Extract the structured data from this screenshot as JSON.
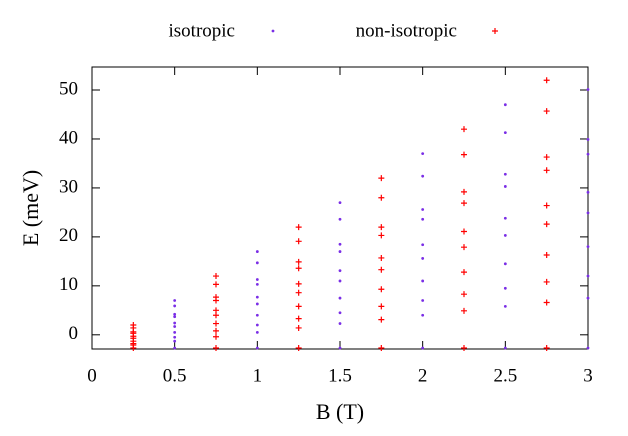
{
  "chart_data": {
    "type": "scatter",
    "xlabel": "B (T)",
    "ylabel": "E (meV)",
    "xlim": [
      0,
      3
    ],
    "ylim": [
      -2.9,
      54.7
    ],
    "xticks": [
      0,
      0.5,
      1,
      1.5,
      2,
      2.5,
      3
    ],
    "yticks": [
      0,
      10,
      20,
      30,
      40,
      50
    ],
    "legend": "top",
    "series": [
      {
        "name": "isotropic",
        "color": "#7a2ee6",
        "marker": "dot",
        "x": [
          0.5,
          1,
          1.5,
          2,
          2.5,
          3,
          0.5,
          1,
          1.5,
          2,
          2.5,
          3,
          0.5,
          1,
          1.5,
          2,
          2.5,
          3,
          0.5,
          1,
          1.5,
          2,
          2.5,
          3,
          0.5,
          1,
          1.5,
          2,
          2.5,
          3,
          0.5,
          1,
          1.5,
          2,
          2.5,
          3,
          0.5,
          1,
          1.5,
          2,
          2.5,
          3,
          0.5,
          1,
          1.5,
          2,
          2.5,
          3,
          0.5,
          1,
          1.5,
          2,
          2.5,
          0.5,
          1,
          1.5,
          2,
          2.5,
          3
        ],
        "y": [
          -1.3,
          0.5,
          2.3,
          4,
          5.8,
          7.5,
          -0.5,
          2,
          4.5,
          7,
          9.5,
          12,
          0.5,
          4,
          7.5,
          11,
          14.5,
          18,
          1.7,
          6.3,
          11,
          15.6,
          20.3,
          24.9,
          2.4,
          7.7,
          13.1,
          18.4,
          23.8,
          29.1,
          3.7,
          10.3,
          17,
          23.6,
          30.3,
          36.9,
          4.2,
          11.3,
          18.5,
          25.6,
          32.8,
          39.9,
          5.9,
          14.7,
          23.6,
          32.4,
          41.3,
          50.1,
          7,
          17,
          27,
          37,
          47,
          -2.7,
          -2.7,
          -2.7,
          -2.7,
          -2.7,
          -2.7
        ]
      },
      {
        "name": "non-isotropic",
        "color": "#ff0000",
        "marker": "plus",
        "x": [
          0.25,
          0.75,
          1.25,
          1.75,
          2.25,
          2.75,
          0.25,
          0.75,
          1.25,
          1.75,
          2.25,
          2.75,
          0.25,
          0.75,
          1.25,
          1.75,
          2.25,
          2.75,
          0.25,
          0.75,
          1.25,
          1.75,
          2.25,
          2.75,
          0.25,
          0.75,
          1.25,
          1.75,
          2.25,
          2.75,
          0.25,
          0.75,
          1.25,
          1.75,
          2.25,
          2.75,
          0.25,
          0.75,
          1.25,
          1.75,
          2.25,
          2.75,
          0.25,
          0.75,
          1.25,
          1.75,
          2.25,
          2.75,
          0.25,
          0.75,
          1.25,
          1.75,
          2.25,
          2.75,
          0.25,
          0.75,
          1.25,
          1.75,
          2.25,
          2.75
        ],
        "y": [
          -2.1,
          -0.4,
          1.4,
          3.1,
          4.9,
          6.6,
          -1.8,
          0.8,
          3.3,
          5.8,
          8.3,
          10.8,
          -1.3,
          2.3,
          5.8,
          9.3,
          12.8,
          16.3,
          -0.7,
          4,
          8.6,
          13.3,
          17.9,
          22.6,
          -0.3,
          5,
          10.4,
          15.7,
          21.1,
          26.4,
          0.3,
          7,
          13.6,
          20.3,
          26.9,
          33.6,
          0.6,
          7.7,
          14.9,
          22,
          29.2,
          36.3,
          1.4,
          10.3,
          19.1,
          28,
          36.8,
          45.7,
          2,
          12,
          22,
          32,
          42,
          52,
          -2.7,
          -2.7,
          -2.7,
          -2.7,
          -2.7,
          -2.7
        ]
      }
    ]
  }
}
